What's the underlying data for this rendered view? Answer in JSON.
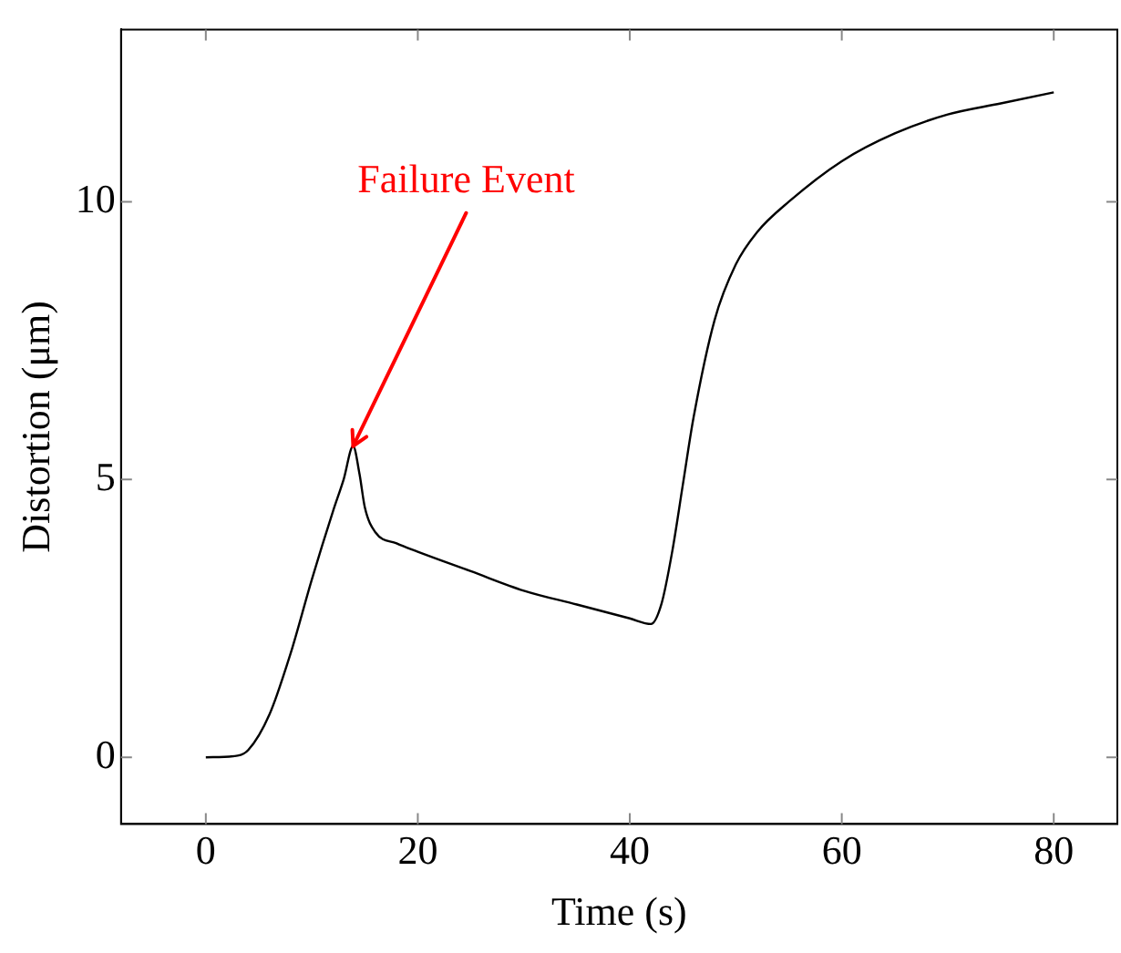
{
  "chart_data": {
    "type": "line",
    "xlabel": "Time (s)",
    "ylabel": "Distortion (μm)",
    "x": [
      0,
      3,
      4,
      6,
      8,
      10,
      12,
      13,
      13.9,
      14.5,
      15,
      16,
      18,
      20,
      25,
      30,
      35,
      40,
      42,
      43,
      44,
      45,
      46,
      48,
      50,
      52,
      55,
      60,
      65,
      70,
      75,
      80
    ],
    "series": [
      {
        "color": "#000000",
        "values": [
          0,
          0.03,
          0.13,
          0.77,
          1.87,
          3.2,
          4.43,
          5.0,
          5.6,
          5.1,
          4.5,
          4.05,
          3.85,
          3.7,
          3.35,
          3.0,
          2.75,
          2.5,
          2.4,
          2.77,
          3.7,
          4.9,
          6.1,
          7.87,
          8.87,
          9.45,
          10.0,
          10.73,
          11.23,
          11.57,
          11.77,
          11.97
        ]
      }
    ],
    "annotations": [
      {
        "text": "Failure Event",
        "x": 13.9,
        "y": 5.6
      }
    ],
    "xlim": [
      -8,
      86
    ],
    "ylim": [
      -1.2,
      13.1
    ],
    "xticks": [
      0,
      20,
      40,
      60,
      80
    ],
    "yticks": [
      0,
      5,
      10
    ],
    "grid": false,
    "legend": false,
    "marker": "none",
    "line_style": "solid"
  }
}
